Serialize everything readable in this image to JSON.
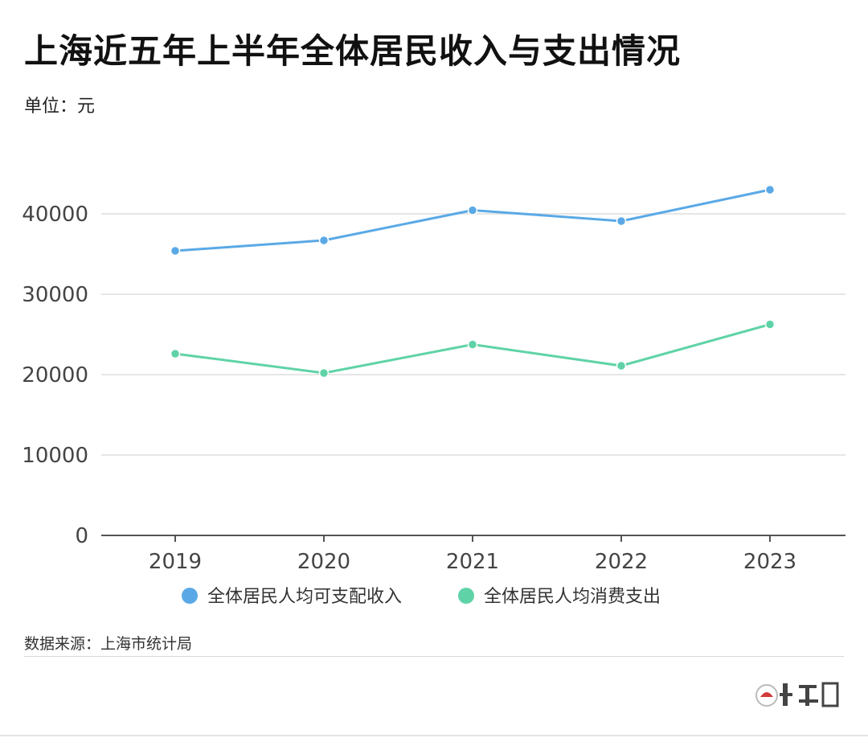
{
  "header": {
    "title": "上海近五年上半年全体居民收入与支出情况",
    "unit": "单位：元"
  },
  "footer": {
    "source": "数据来源：上海市统计局"
  },
  "chart_data": {
    "type": "line",
    "categories": [
      "2019",
      "2020",
      "2021",
      "2022",
      "2023"
    ],
    "series": [
      {
        "name": "全体居民人均可支配收入",
        "color": "#5aa9e6",
        "values": [
          35400,
          36700,
          40450,
          39100,
          43000
        ]
      },
      {
        "name": "全体居民人均消费支出",
        "color": "#5fd3a7",
        "values": [
          22600,
          20200,
          23750,
          21100,
          26250
        ]
      }
    ],
    "ylim": [
      0,
      50000
    ],
    "yticks": [
      0,
      10000,
      20000,
      30000,
      40000
    ],
    "grid": true,
    "legend_position": "bottom"
  }
}
